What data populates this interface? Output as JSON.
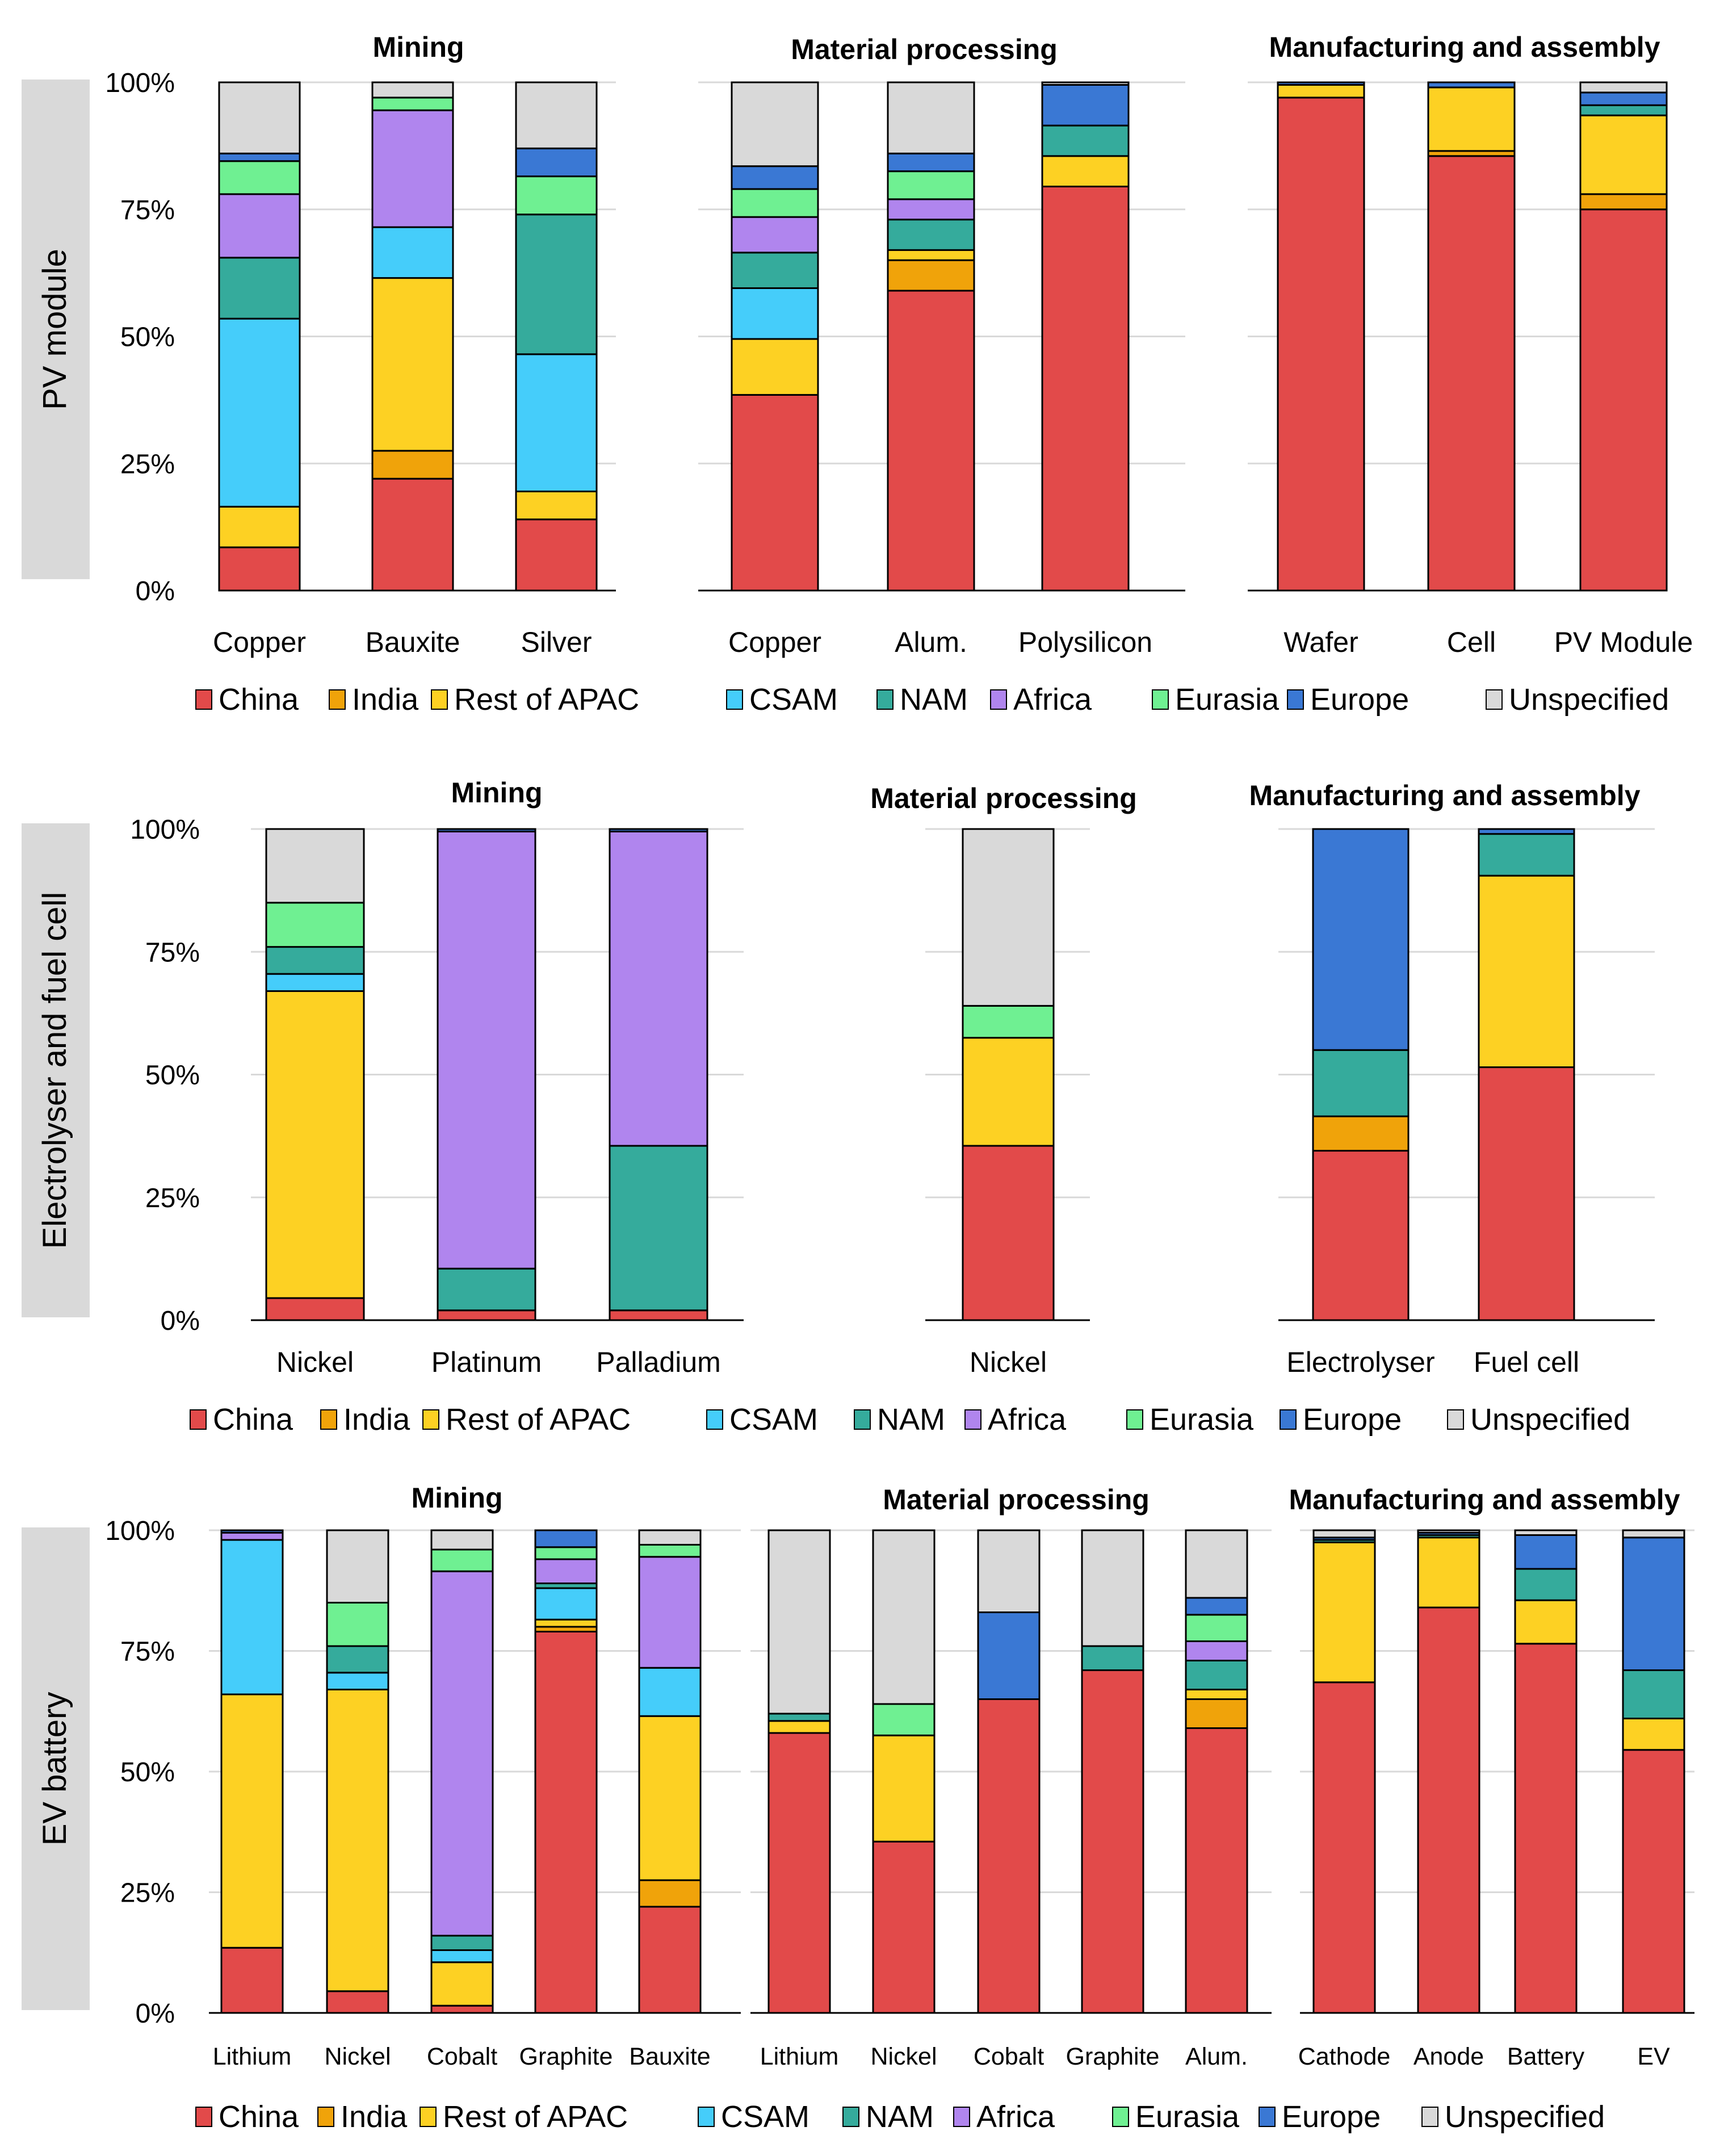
{
  "colors": {
    "China": "#e24a4a",
    "India": "#f0a30a",
    "Rest of APAC": "#fdd123",
    "CSAM": "#45cdfa",
    "NAM": "#35ab9c",
    "Africa": "#b085ee",
    "Eurasia": "#6ff092",
    "Europe": "#3a78d4",
    "Unspecified": "#d9d9d9"
  },
  "legend": [
    "China",
    "India",
    "Rest of APAC",
    "CSAM",
    "NAM",
    "Africa",
    "Eurasia",
    "Europe",
    "Unspecified"
  ],
  "chart_data": [
    {
      "type": "bar",
      "stacked": true,
      "row_label": "PV module",
      "yticks": [
        "0%",
        "25%",
        "50%",
        "75%",
        "100%"
      ],
      "ylim": [
        0,
        100
      ],
      "panels": [
        {
          "title": "Mining",
          "categories": [
            "Copper",
            "Bauxite",
            "Silver"
          ],
          "series": [
            {
              "name": "China",
              "values": [
                8.5,
                22,
                14
              ]
            },
            {
              "name": "India",
              "values": [
                0,
                5.5,
                0
              ]
            },
            {
              "name": "Rest of APAC",
              "values": [
                8,
                34,
                5.5
              ]
            },
            {
              "name": "CSAM",
              "values": [
                37,
                10,
                27
              ]
            },
            {
              "name": "NAM",
              "values": [
                12,
                0,
                27.5
              ]
            },
            {
              "name": "Africa",
              "values": [
                12.5,
                23,
                0
              ]
            },
            {
              "name": "Eurasia",
              "values": [
                6.5,
                2.5,
                7.5
              ]
            },
            {
              "name": "Europe",
              "values": [
                1.5,
                0,
                5.5
              ]
            },
            {
              "name": "Unspecified",
              "values": [
                14,
                3,
                13
              ]
            }
          ]
        },
        {
          "title": "Material processing",
          "categories": [
            "Copper",
            "Alum.",
            "Polysilicon"
          ],
          "series": [
            {
              "name": "China",
              "values": [
                38.5,
                59,
                79.5
              ]
            },
            {
              "name": "India",
              "values": [
                0,
                6,
                0
              ]
            },
            {
              "name": "Rest of APAC",
              "values": [
                11,
                2,
                6
              ]
            },
            {
              "name": "CSAM",
              "values": [
                10,
                0,
                0
              ]
            },
            {
              "name": "NAM",
              "values": [
                7,
                6,
                6
              ]
            },
            {
              "name": "Africa",
              "values": [
                7,
                4,
                0
              ]
            },
            {
              "name": "Eurasia",
              "values": [
                5.5,
                5.5,
                0
              ]
            },
            {
              "name": "Europe",
              "values": [
                4.5,
                3.5,
                8
              ]
            },
            {
              "name": "Unspecified",
              "values": [
                16.5,
                14,
                0.5
              ]
            }
          ]
        },
        {
          "title": "Manufacturing and assembly",
          "categories": [
            "Wafer",
            "Cell",
            "PV Module"
          ],
          "series": [
            {
              "name": "China",
              "values": [
                97,
                85.5,
                75
              ]
            },
            {
              "name": "India",
              "values": [
                0,
                1,
                3
              ]
            },
            {
              "name": "Rest of APAC",
              "values": [
                2.5,
                12.5,
                15.5
              ]
            },
            {
              "name": "CSAM",
              "values": [
                0,
                0,
                0
              ]
            },
            {
              "name": "NAM",
              "values": [
                0,
                0,
                2
              ]
            },
            {
              "name": "Africa",
              "values": [
                0,
                0,
                0
              ]
            },
            {
              "name": "Eurasia",
              "values": [
                0,
                0,
                0
              ]
            },
            {
              "name": "Europe",
              "values": [
                0.5,
                1,
                2.5
              ]
            },
            {
              "name": "Unspecified",
              "values": [
                0,
                0,
                2
              ]
            }
          ]
        }
      ]
    },
    {
      "type": "bar",
      "stacked": true,
      "row_label": "Electrolyser and fuel cell",
      "yticks": [
        "0%",
        "25%",
        "50%",
        "75%",
        "100%"
      ],
      "ylim": [
        0,
        100
      ],
      "panels": [
        {
          "title": "Mining",
          "categories": [
            "Nickel",
            "Platinum",
            "Palladium"
          ],
          "series": [
            {
              "name": "China",
              "values": [
                4.5,
                2,
                2
              ]
            },
            {
              "name": "India",
              "values": [
                0,
                0,
                0
              ]
            },
            {
              "name": "Rest of APAC",
              "values": [
                62.5,
                0,
                0
              ]
            },
            {
              "name": "CSAM",
              "values": [
                3.5,
                0,
                0
              ]
            },
            {
              "name": "NAM",
              "values": [
                5.5,
                8.5,
                33.5
              ]
            },
            {
              "name": "Africa",
              "values": [
                0,
                89,
                64
              ]
            },
            {
              "name": "Eurasia",
              "values": [
                9,
                0,
                0
              ]
            },
            {
              "name": "Europe",
              "values": [
                0,
                0.5,
                0.5
              ]
            },
            {
              "name": "Unspecified",
              "values": [
                15,
                0,
                0
              ]
            }
          ]
        },
        {
          "title": "Material processing",
          "categories": [
            "Nickel"
          ],
          "series": [
            {
              "name": "China",
              "values": [
                35.5
              ]
            },
            {
              "name": "India",
              "values": [
                0
              ]
            },
            {
              "name": "Rest of APAC",
              "values": [
                22
              ]
            },
            {
              "name": "CSAM",
              "values": [
                0
              ]
            },
            {
              "name": "NAM",
              "values": [
                0
              ]
            },
            {
              "name": "Africa",
              "values": [
                0
              ]
            },
            {
              "name": "Eurasia",
              "values": [
                6.5
              ]
            },
            {
              "name": "Europe",
              "values": [
                0
              ]
            },
            {
              "name": "Unspecified",
              "values": [
                36
              ]
            }
          ]
        },
        {
          "title": "Manufacturing and assembly",
          "categories": [
            "Electrolyser",
            "Fuel cell"
          ],
          "series": [
            {
              "name": "China",
              "values": [
                34.5,
                51.5
              ]
            },
            {
              "name": "India",
              "values": [
                7,
                0
              ]
            },
            {
              "name": "Rest of APAC",
              "values": [
                0,
                39
              ]
            },
            {
              "name": "CSAM",
              "values": [
                0,
                0
              ]
            },
            {
              "name": "NAM",
              "values": [
                13.5,
                8.5
              ]
            },
            {
              "name": "Africa",
              "values": [
                0,
                0
              ]
            },
            {
              "name": "Eurasia",
              "values": [
                0,
                0
              ]
            },
            {
              "name": "Europe",
              "values": [
                45,
                1
              ]
            },
            {
              "name": "Unspecified",
              "values": [
                0,
                0
              ]
            }
          ]
        }
      ]
    },
    {
      "type": "bar",
      "stacked": true,
      "row_label": "EV battery",
      "yticks": [
        "0%",
        "25%",
        "50%",
        "75%",
        "100%"
      ],
      "ylim": [
        0,
        100
      ],
      "panels": [
        {
          "title": "Mining",
          "categories": [
            "Lithium",
            "Nickel",
            "Cobalt",
            "Graphite",
            "Bauxite"
          ],
          "series": [
            {
              "name": "China",
              "values": [
                13.5,
                4.5,
                1.5,
                79,
                22
              ]
            },
            {
              "name": "India",
              "values": [
                0,
                0,
                0,
                1,
                5.5
              ]
            },
            {
              "name": "Rest of APAC",
              "values": [
                52.5,
                62.5,
                9,
                1.5,
                34
              ]
            },
            {
              "name": "CSAM",
              "values": [
                32,
                3.5,
                2.5,
                6.5,
                10
              ]
            },
            {
              "name": "NAM",
              "values": [
                0,
                5.5,
                3,
                1,
                0
              ]
            },
            {
              "name": "Africa",
              "values": [
                1.5,
                0,
                75.5,
                5,
                23
              ]
            },
            {
              "name": "Eurasia",
              "values": [
                0,
                9,
                4.5,
                2.5,
                2.5
              ]
            },
            {
              "name": "Europe",
              "values": [
                0.5,
                0,
                0,
                3.5,
                0
              ]
            },
            {
              "name": "Unspecified",
              "values": [
                0,
                15,
                4,
                0,
                3
              ]
            }
          ]
        },
        {
          "title": "Material processing",
          "categories": [
            "Lithium",
            "Nickel",
            "Cobalt",
            "Graphite",
            "Alum."
          ],
          "series": [
            {
              "name": "China",
              "values": [
                58,
                35.5,
                65,
                71,
                59
              ]
            },
            {
              "name": "India",
              "values": [
                0,
                0,
                0,
                0,
                6
              ]
            },
            {
              "name": "Rest of APAC",
              "values": [
                2.5,
                22,
                0,
                0,
                2
              ]
            },
            {
              "name": "CSAM",
              "values": [
                0,
                0,
                0,
                0,
                0
              ]
            },
            {
              "name": "NAM",
              "values": [
                1.5,
                0,
                0,
                5,
                6
              ]
            },
            {
              "name": "Africa",
              "values": [
                0,
                0,
                0,
                0,
                4
              ]
            },
            {
              "name": "Eurasia",
              "values": [
                0,
                6.5,
                0,
                0,
                5.5
              ]
            },
            {
              "name": "Europe",
              "values": [
                0,
                0,
                18,
                0,
                3.5
              ]
            },
            {
              "name": "Unspecified",
              "values": [
                38,
                36,
                17,
                24,
                14
              ]
            }
          ]
        },
        {
          "title": "Manufacturing and assembly",
          "categories": [
            "Cathode",
            "Anode",
            "Battery",
            "EV"
          ],
          "series": [
            {
              "name": "China",
              "values": [
                68.5,
                84,
                76.5,
                54.5
              ]
            },
            {
              "name": "India",
              "values": [
                0,
                0,
                0,
                0
              ]
            },
            {
              "name": "Rest of APAC",
              "values": [
                29,
                14.5,
                9,
                6.5
              ]
            },
            {
              "name": "CSAM",
              "values": [
                0,
                0,
                0,
                0
              ]
            },
            {
              "name": "NAM",
              "values": [
                0.5,
                0.5,
                6.5,
                10
              ]
            },
            {
              "name": "Africa",
              "values": [
                0,
                0,
                0,
                0
              ]
            },
            {
              "name": "Eurasia",
              "values": [
                0,
                0,
                0,
                0
              ]
            },
            {
              "name": "Europe",
              "values": [
                0.5,
                0.5,
                7,
                27.5
              ]
            },
            {
              "name": "Unspecified",
              "values": [
                1.5,
                0.5,
                1,
                1.5
              ]
            }
          ]
        }
      ]
    }
  ]
}
